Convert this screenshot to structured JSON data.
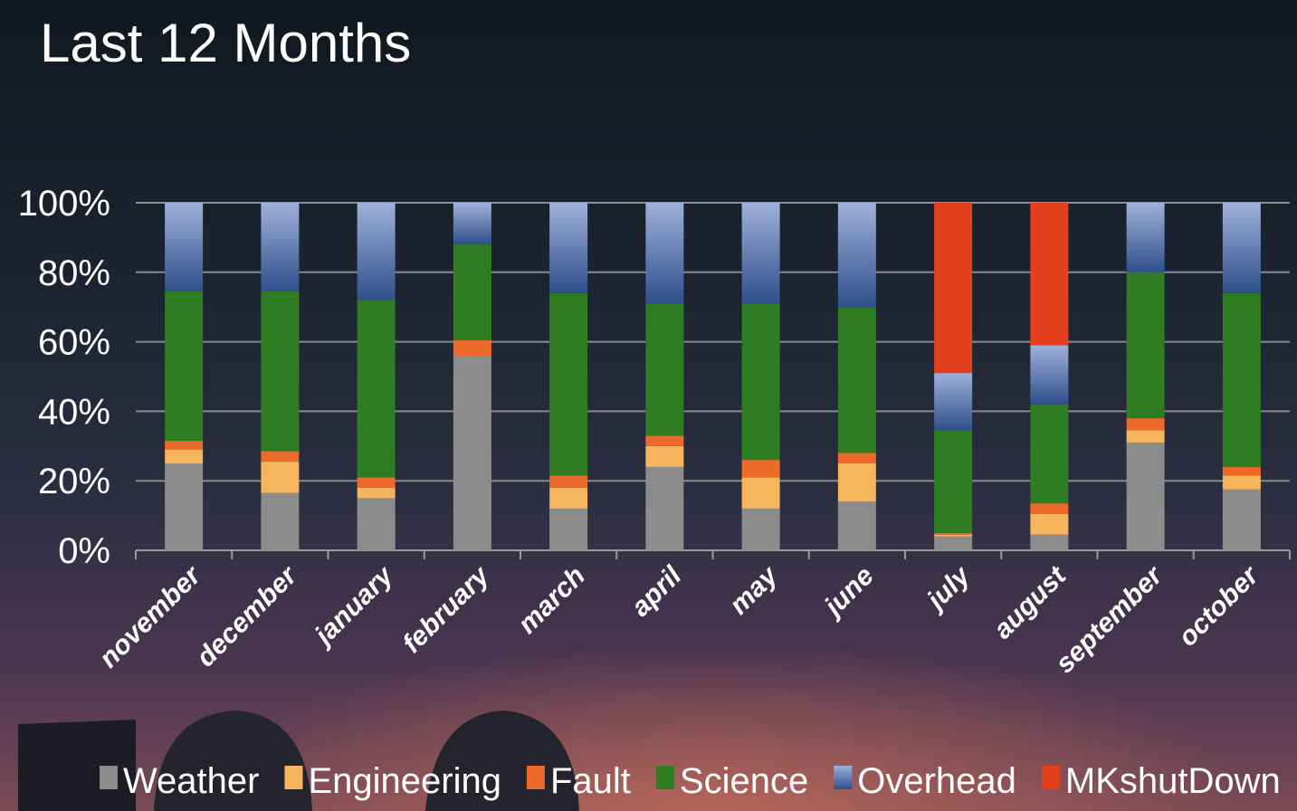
{
  "chart_data": {
    "type": "stacked-bar",
    "title": "Last 12 Months",
    "categories": [
      "november",
      "december",
      "january",
      "february",
      "march",
      "april",
      "may",
      "june",
      "july",
      "august",
      "september",
      "october"
    ],
    "series": [
      {
        "name": "Weather",
        "color": "#8c8c8c",
        "values": [
          25,
          16.5,
          15,
          56,
          12,
          24,
          12,
          14,
          4,
          4.5,
          31,
          17.5
        ]
      },
      {
        "name": "Engineering",
        "color": "#f6b45c",
        "values": [
          4,
          9,
          3,
          0,
          6,
          6,
          9,
          11,
          0.5,
          6,
          3.5,
          4
        ]
      },
      {
        "name": "Fault",
        "color": "#ec6a2a",
        "values": [
          2.5,
          3,
          3,
          4.5,
          3.5,
          3,
          5,
          3,
          0.5,
          3,
          3.5,
          2.5
        ]
      },
      {
        "name": "Science",
        "color": "#2e7d22",
        "values": [
          43,
          46,
          51,
          27.5,
          52.5,
          38,
          45,
          42,
          29.5,
          28.5,
          42,
          50
        ]
      },
      {
        "name": "Overhead",
        "color": "#9fb1da",
        "values": [
          25.5,
          25.5,
          28,
          12,
          26,
          29,
          29,
          30,
          16.5,
          17,
          20,
          26
        ]
      },
      {
        "name": "MKshutDown",
        "color": "#e43f1e",
        "values": [
          0,
          0,
          0,
          0,
          0,
          0,
          0,
          0,
          49,
          41,
          0,
          0
        ]
      }
    ],
    "ylim": [
      0,
      100
    ],
    "yticks": [
      {
        "value": 0,
        "label": "0%"
      },
      {
        "value": 20,
        "label": "20%"
      },
      {
        "value": 40,
        "label": "40%"
      },
      {
        "value": 60,
        "label": "60%"
      },
      {
        "value": 80,
        "label": "80%"
      },
      {
        "value": 100,
        "label": "100%"
      }
    ],
    "grid": true,
    "legend": "bottom"
  }
}
